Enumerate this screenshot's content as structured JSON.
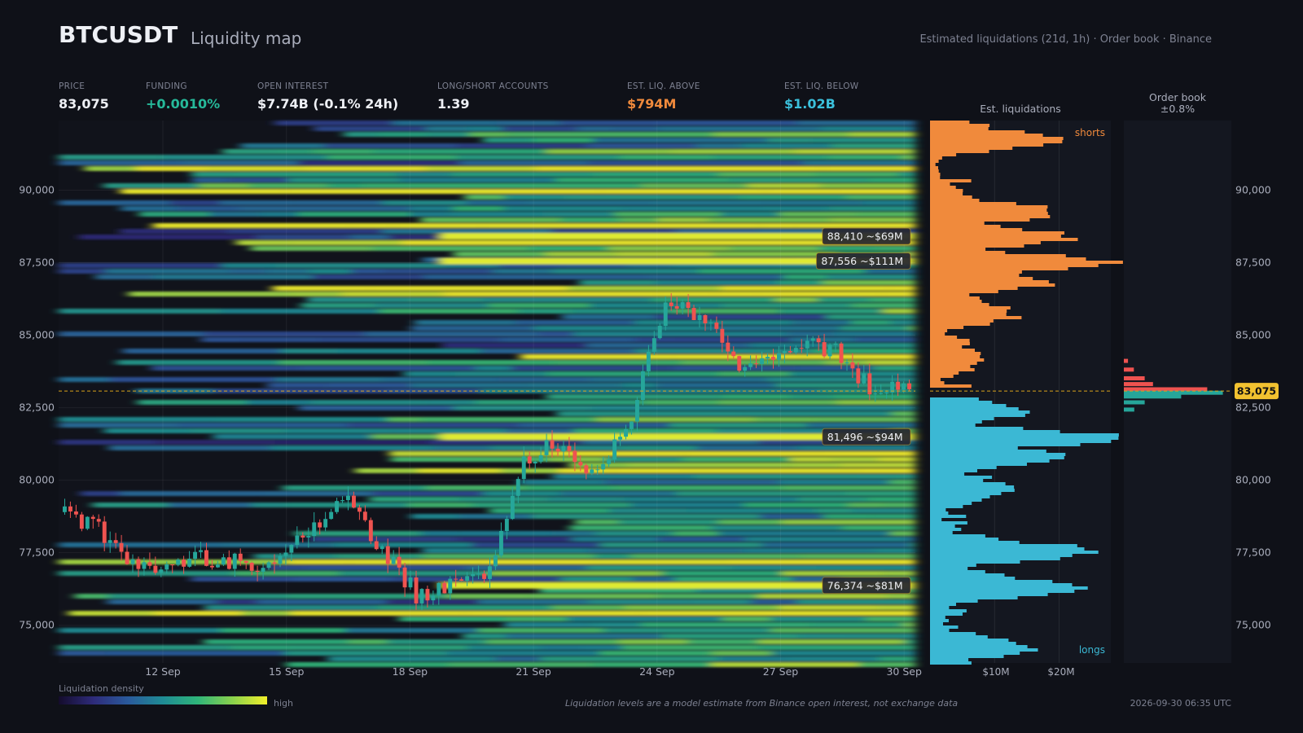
{
  "header": {
    "symbol": "BTCUSDT",
    "subtitle": "Liquidity map",
    "meta": "Estimated liquidations (21d, 1h)  ·  Order book  ·  Binance"
  },
  "stats": [
    {
      "label": "PRICE",
      "value": "83,075",
      "tone": "default"
    },
    {
      "label": "FUNDING",
      "value": "+0.0010%",
      "tone": "pos"
    },
    {
      "label": "OPEN INTEREST",
      "value": "$7.74B (-0.1% 24h)",
      "tone": "default"
    },
    {
      "label": "LONG/SHORT ACCOUNTS",
      "value": "1.39",
      "tone": "default"
    },
    {
      "label": "EST. LIQ. ABOVE",
      "value": "$794M",
      "tone": "orange"
    },
    {
      "label": "EST. LIQ. BELOW",
      "value": "$1.02B",
      "tone": "cyan"
    }
  ],
  "panels": {
    "liq_title": "Est. liquidations",
    "book_title_1": "Order book",
    "book_title_2": "±0.8%",
    "shorts_label": "shorts",
    "longs_label": "longs",
    "liq_ticks": [
      "$10M",
      "$20M"
    ]
  },
  "footer": {
    "legend_label": "Liquidation density",
    "legend_high": "high",
    "note": "Liquidation levels are a model estimate from Binance open interest, not exchange data",
    "timestamp": "2026-09-30 06:35 UTC"
  },
  "colors": {
    "bg": "#0f1118",
    "up": "#26a69a",
    "down": "#ef5350",
    "shorts": "#f08a3c",
    "longs": "#3bb8d4",
    "price_line": "#d9a21b",
    "price_badge": "#f2c230"
  },
  "chart_data": {
    "type": "heatmap",
    "x_ticks": [
      "12 Sep",
      "15 Sep",
      "18 Sep",
      "21 Sep",
      "24 Sep",
      "27 Sep",
      "30 Sep"
    ],
    "y_ticks": [
      75000,
      77500,
      80000,
      82500,
      85000,
      87500,
      90000
    ],
    "ylim": [
      73700,
      92400
    ],
    "current_price": 83075,
    "current_price_label": "83,075",
    "annotations": [
      {
        "price": 88410,
        "text": "88,410  ~$69M"
      },
      {
        "price": 87556,
        "text": "87,556  ~$111M"
      },
      {
        "price": 81496,
        "text": "81,496  ~$94M"
      },
      {
        "price": 76374,
        "text": "76,374  ~$81M"
      }
    ],
    "candles_daily_close": [
      78900,
      78300,
      77200,
      77100,
      77300,
      77200,
      76900,
      78300,
      79400,
      77700,
      76000,
      76300,
      76500,
      80800,
      81300,
      80400,
      81500,
      86000,
      85800,
      84100,
      84200,
      84700,
      84400,
      83100,
      83300
    ],
    "liq_levels_shorts": [
      {
        "price": 87556,
        "value": 24
      },
      {
        "price": 88410,
        "value": 18
      },
      {
        "price": 86900,
        "value": 15
      },
      {
        "price": 89300,
        "value": 16
      },
      {
        "price": 91800,
        "value": 17
      },
      {
        "price": 85800,
        "value": 10
      },
      {
        "price": 84300,
        "value": 4
      }
    ],
    "liq_levels_longs": [
      {
        "price": 81496,
        "value": 26
      },
      {
        "price": 80900,
        "value": 18
      },
      {
        "price": 77600,
        "value": 22
      },
      {
        "price": 76374,
        "value": 21
      },
      {
        "price": 79800,
        "value": 10
      },
      {
        "price": 74300,
        "value": 13
      },
      {
        "price": 82400,
        "value": 12
      }
    ],
    "liq_xlim": [
      0,
      28
    ],
    "orderbook_asks": [
      {
        "price": 83120,
        "value": 1.0
      },
      {
        "price": 83300,
        "value": 0.35
      },
      {
        "price": 83500,
        "value": 0.25
      },
      {
        "price": 83800,
        "value": 0.12
      },
      {
        "price": 84100,
        "value": 0.05
      }
    ],
    "orderbook_bids": [
      {
        "price": 83030,
        "value": 0.95
      },
      {
        "price": 82900,
        "value": 0.55
      },
      {
        "price": 82700,
        "value": 0.2
      },
      {
        "price": 82450,
        "value": 0.1
      }
    ]
  }
}
